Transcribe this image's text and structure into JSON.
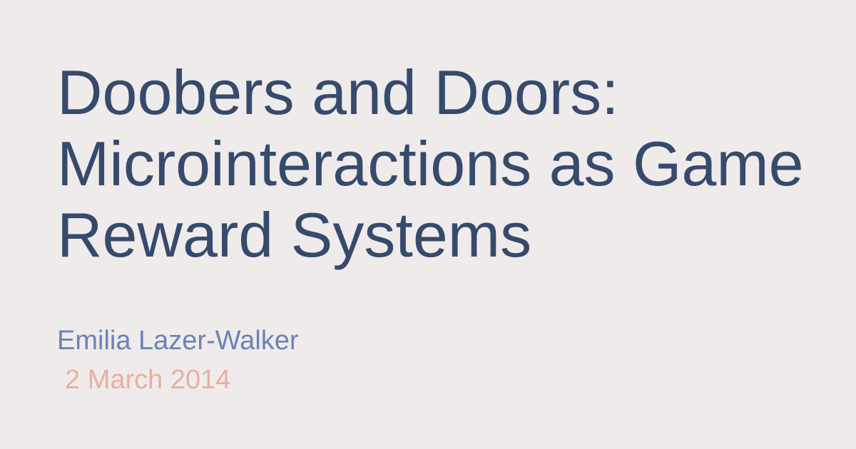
{
  "slide": {
    "title_lines": [
      "Doobers and Doors:",
      "Microinteractions as Game",
      "Reward Systems"
    ],
    "author": "Emilia Lazer-Walker",
    "date": "2 March 2014"
  },
  "colors": {
    "background": "#efebeb",
    "title": "#364a6c",
    "author": "#6b83b5",
    "date": "#e9aea3"
  }
}
